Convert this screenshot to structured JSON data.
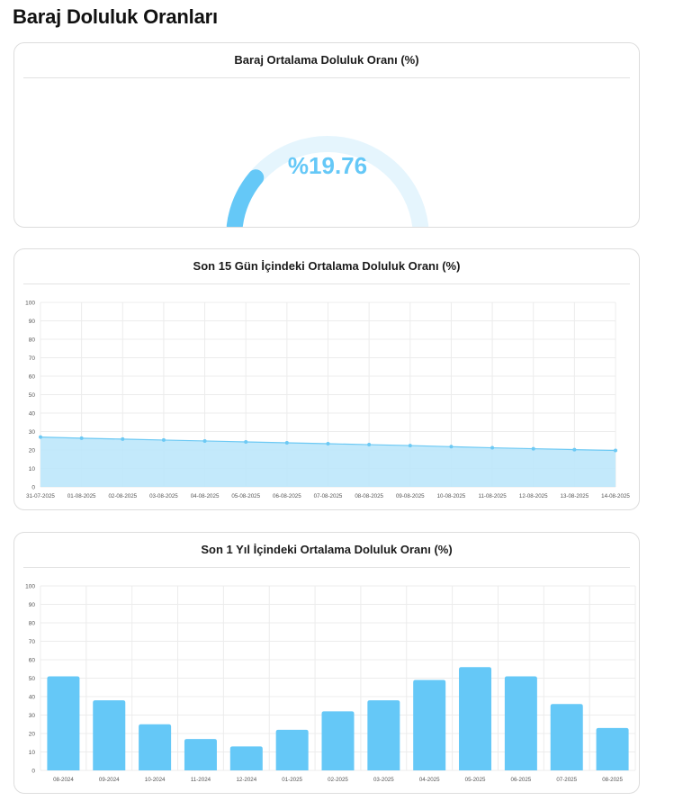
{
  "page": {
    "title": "Baraj Doluluk Oranları"
  },
  "colors": {
    "accent": "#65c8f7",
    "gauge_track": "#e5f5fd",
    "area_fill": "#bde7fb",
    "line": "#6cc9f4",
    "grid": "#ececec",
    "tick": "#555555"
  },
  "gauge": {
    "title": "Baraj Ortalama Doluluk Oranı (%)",
    "value": 19.76,
    "display": "%19.76",
    "min": 0,
    "max": 100
  },
  "chart_data": [
    {
      "type": "area",
      "title": "Son 15 Gün İçindeki Ortalama Doluluk Oranı (%)",
      "xlabel": "",
      "ylabel": "",
      "ylim": [
        0,
        100
      ],
      "yticks": [
        0,
        10,
        20,
        30,
        40,
        50,
        60,
        70,
        80,
        90,
        100
      ],
      "grid": true,
      "legend": "none",
      "categories": [
        "31-07-2025",
        "01-08-2025",
        "02-08-2025",
        "03-08-2025",
        "04-08-2025",
        "05-08-2025",
        "06-08-2025",
        "07-08-2025",
        "08-08-2025",
        "09-08-2025",
        "10-08-2025",
        "11-08-2025",
        "12-08-2025",
        "13-08-2025",
        "14-08-2025"
      ],
      "series": [
        {
          "values": [
            27.0,
            26.4,
            25.9,
            25.4,
            24.9,
            24.4,
            23.9,
            23.4,
            22.9,
            22.4,
            21.8,
            21.2,
            20.7,
            20.2,
            19.76
          ]
        }
      ]
    },
    {
      "type": "bar",
      "title": "Son 1 Yıl İçindeki Ortalama Doluluk Oranı (%)",
      "xlabel": "",
      "ylabel": "",
      "ylim": [
        0,
        100
      ],
      "yticks": [
        0,
        10,
        20,
        30,
        40,
        50,
        60,
        70,
        80,
        90,
        100
      ],
      "grid": true,
      "legend": "none",
      "categories": [
        "08-2024",
        "09-2024",
        "10-2024",
        "11-2024",
        "12-2024",
        "01-2025",
        "02-2025",
        "03-2025",
        "04-2025",
        "05-2025",
        "06-2025",
        "07-2025",
        "08-2025"
      ],
      "series": [
        {
          "values": [
            51,
            38,
            25,
            17,
            13,
            22,
            32,
            38,
            49,
            56,
            51,
            36,
            23
          ]
        }
      ]
    }
  ]
}
